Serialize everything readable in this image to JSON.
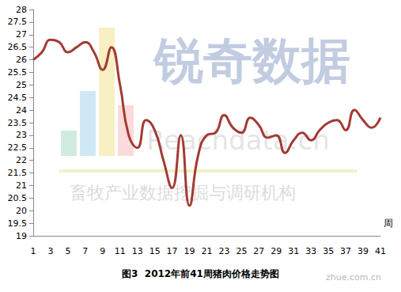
{
  "chart_data": {
    "type": "line",
    "title": "图3  2012年前41周猪肉价格走势图",
    "x_label": "周",
    "categories": [
      "1",
      null,
      "3",
      null,
      "5",
      null,
      "7",
      null,
      "9",
      null,
      "11",
      null,
      "13",
      null,
      "15",
      null,
      "17",
      null,
      "19",
      null,
      "21",
      null,
      "23",
      null,
      "25",
      null,
      "27",
      null,
      "29",
      null,
      "31",
      null,
      "33",
      null,
      "35",
      null,
      "37",
      null,
      "39",
      null,
      "41"
    ],
    "values": [
      26.0,
      26.3,
      26.8,
      26.7,
      26.3,
      26.5,
      26.7,
      26.3,
      25.6,
      26.5,
      25.0,
      23.0,
      22.5,
      23.6,
      23.2,
      22.0,
      20.9,
      23.0,
      20.2,
      22.2,
      23.0,
      23.1,
      23.8,
      23.3,
      23.1,
      23.7,
      23.4,
      22.9,
      23.0,
      22.3,
      22.8,
      23.1,
      22.8,
      23.2,
      23.5,
      23.6,
      23.2,
      24.0,
      23.6,
      23.3,
      23.7
    ],
    "color": "#a33a33",
    "ylim": [
      19,
      28
    ],
    "yticks": [
      19,
      19.5,
      20,
      20.5,
      21,
      21.5,
      22,
      22.5,
      23,
      23.5,
      24,
      24.5,
      25,
      25.5,
      26,
      26.5,
      27,
      27.5,
      28
    ],
    "grid": false,
    "annotations": [
      "锐奇数据",
      "Reachdata.cn",
      "畜牧产业数据挖掘与调研机构",
      "zhue.com.cn"
    ]
  }
}
